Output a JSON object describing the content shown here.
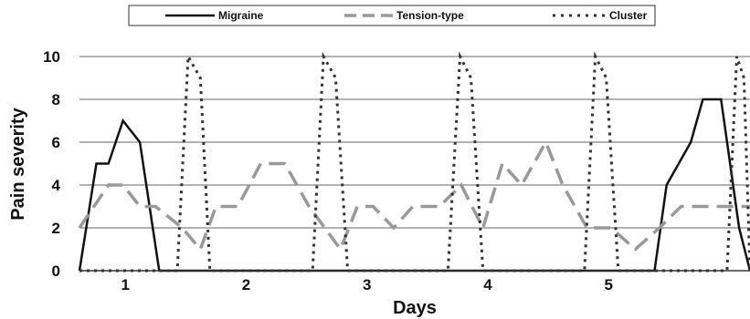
{
  "chart_data": {
    "type": "line",
    "xlabel": "Days",
    "ylabel": "Pain severity",
    "ylim": [
      0,
      10
    ],
    "yticks": [
      "0",
      "2",
      "4",
      "6",
      "8",
      "10"
    ],
    "xticks": [
      {
        "label": "1",
        "x": 1
      },
      {
        "label": "2",
        "x": 2
      },
      {
        "label": "3",
        "x": 3
      },
      {
        "label": "4",
        "x": 4
      },
      {
        "label": "5",
        "x": 5
      }
    ],
    "xlim": [
      0.62,
      6.17
    ],
    "grid": "horizontal",
    "legend": "top",
    "series": [
      {
        "name": "Migraine",
        "color": "#111111",
        "style": "solid",
        "x": [
          0.62,
          0.76,
          0.86,
          0.98,
          1.12,
          1.28,
          5.38,
          5.48,
          5.68,
          5.78,
          5.93,
          6.08,
          6.17
        ],
        "y": [
          0,
          5,
          5,
          7,
          6,
          0,
          0,
          4,
          6,
          8,
          8,
          2,
          0
        ]
      },
      {
        "name": "Tension-type",
        "color": "#999999",
        "style": "dashed",
        "x": [
          0.62,
          0.86,
          0.98,
          1.12,
          1.25,
          1.47,
          1.62,
          1.75,
          1.93,
          2.12,
          2.32,
          2.52,
          2.65,
          2.78,
          2.92,
          3.05,
          3.22,
          3.38,
          3.6,
          3.78,
          3.96,
          4.12,
          4.28,
          4.48,
          4.62,
          4.82,
          5.02,
          5.22,
          5.42,
          5.6,
          5.78,
          6.0,
          6.17
        ],
        "y": [
          2,
          4,
          4,
          3,
          3,
          2,
          1,
          3,
          3,
          5,
          5,
          3,
          2,
          1,
          3,
          3,
          2,
          3,
          3,
          4,
          2,
          5,
          4,
          6,
          4,
          2,
          2,
          1,
          2,
          3,
          3,
          3,
          3
        ]
      },
      {
        "name": "Cluster",
        "color": "#333333",
        "style": "dotted",
        "x": [
          0.62,
          1.43,
          1.52,
          1.62,
          1.7,
          2.55,
          2.64,
          2.74,
          2.84,
          3.67,
          3.77,
          3.86,
          3.96,
          4.8,
          4.89,
          4.98,
          5.08,
          5.98,
          6.06,
          6.12,
          6.17
        ],
        "y": [
          0,
          0,
          10,
          9,
          0,
          0,
          10,
          9,
          0,
          0,
          10,
          9,
          0,
          0,
          10,
          9,
          0,
          0,
          10,
          9,
          0
        ]
      }
    ]
  }
}
